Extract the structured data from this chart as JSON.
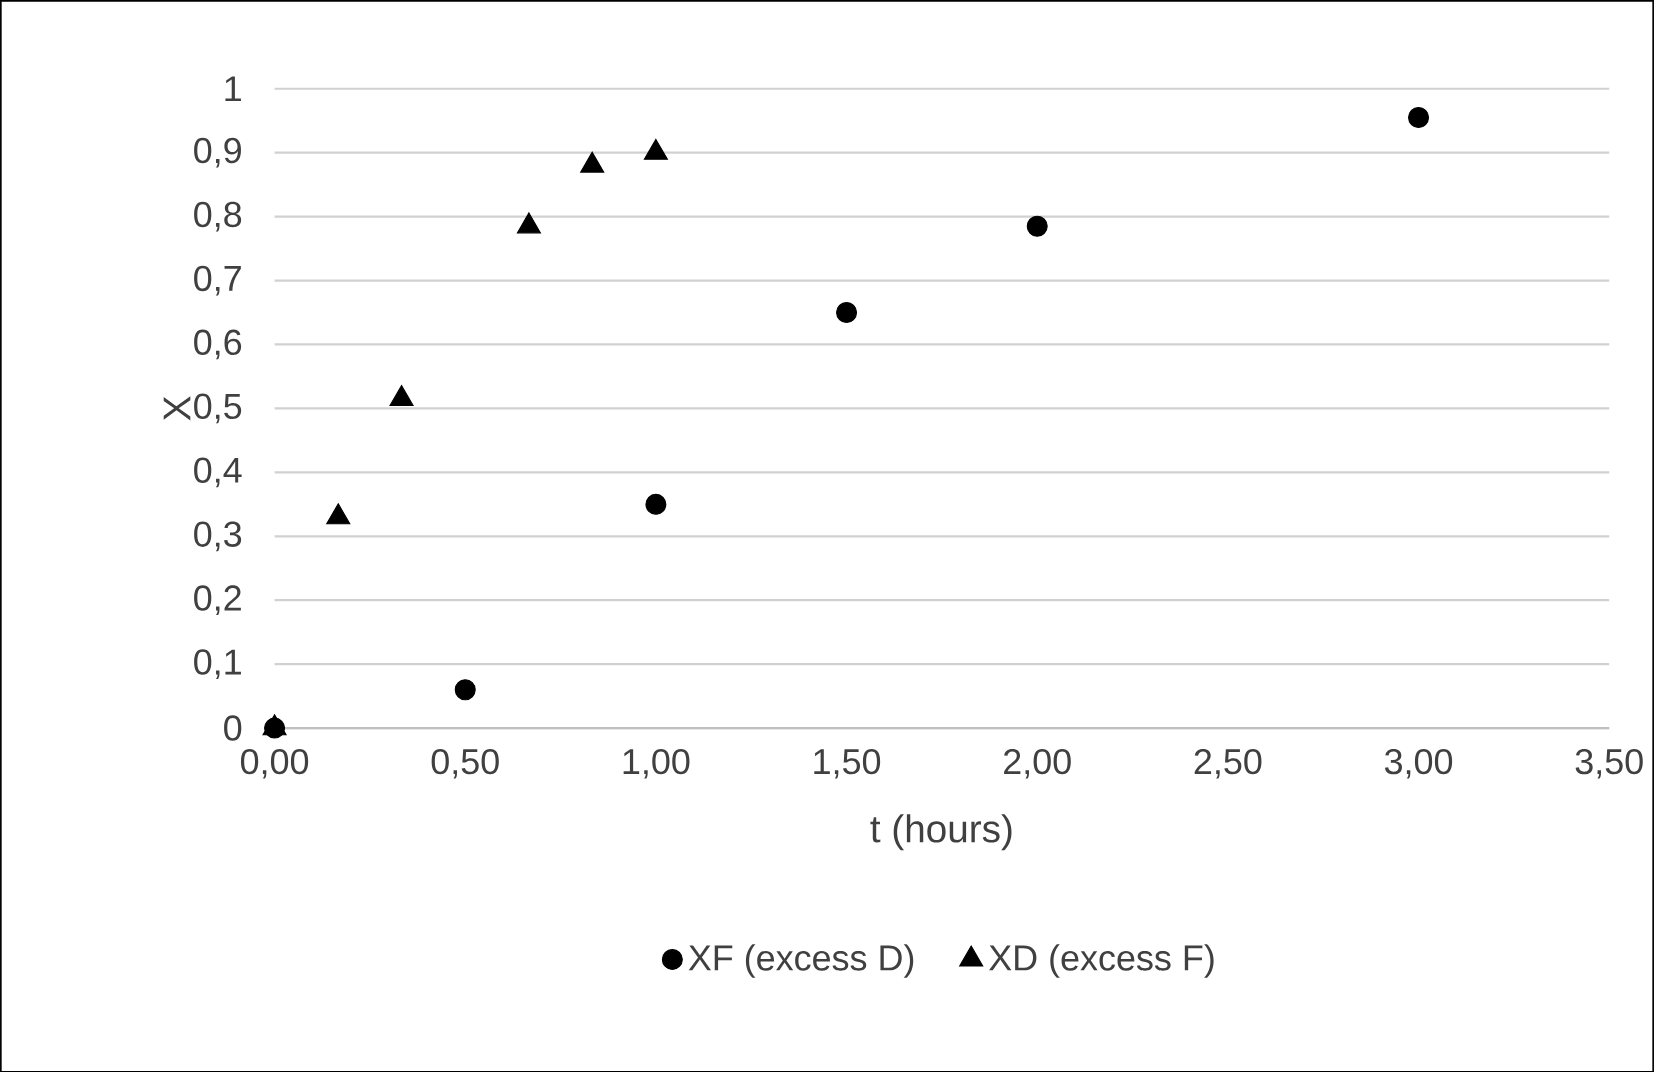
{
  "chart_data": {
    "type": "scatter",
    "xlabel": "t (hours)",
    "ylabel": "X",
    "xlim": [
      0,
      3.5
    ],
    "ylim": [
      0,
      1
    ],
    "xticks": [
      {
        "value": 0,
        "label": "0,00"
      },
      {
        "value": 0.5,
        "label": "0,50"
      },
      {
        "value": 1,
        "label": "1,00"
      },
      {
        "value": 1.5,
        "label": "1,50"
      },
      {
        "value": 2,
        "label": "2,00"
      },
      {
        "value": 2.5,
        "label": "2,50"
      },
      {
        "value": 3,
        "label": "3,00"
      },
      {
        "value": 3.5,
        "label": "3,50"
      }
    ],
    "yticks": [
      0,
      {
        "value": 0.1,
        "label": "0,1"
      },
      {
        "value": 0.2,
        "label": "0,2"
      },
      {
        "value": 0.3,
        "label": "0,3"
      },
      {
        "value": 0.4,
        "label": "0,4"
      },
      {
        "value": 0.5,
        "label": "0,5"
      },
      {
        "value": 0.6,
        "label": "0,6"
      },
      {
        "value": 0.7,
        "label": "0,7"
      },
      {
        "value": 0.8,
        "label": "0,8"
      },
      {
        "value": 0.9,
        "label": "0,9"
      },
      1
    ],
    "grid": "y",
    "legend": "bottom",
    "series": [
      {
        "name": "XF (excess D)",
        "color": "#000000",
        "marker": "circle",
        "x": [
          0,
          0.5,
          1,
          1.5,
          2,
          3
        ],
        "values": [
          0,
          0.06,
          0.35,
          0.65,
          0.785,
          0.955
        ]
      },
      {
        "name": "XD (excess F)",
        "color": "#000000",
        "marker": "triangle",
        "x": [
          0,
          0.167,
          0.333,
          0.667,
          0.833,
          1
        ],
        "values": [
          0,
          0.33,
          0.515,
          0.785,
          0.88,
          0.9
        ]
      }
    ]
  }
}
